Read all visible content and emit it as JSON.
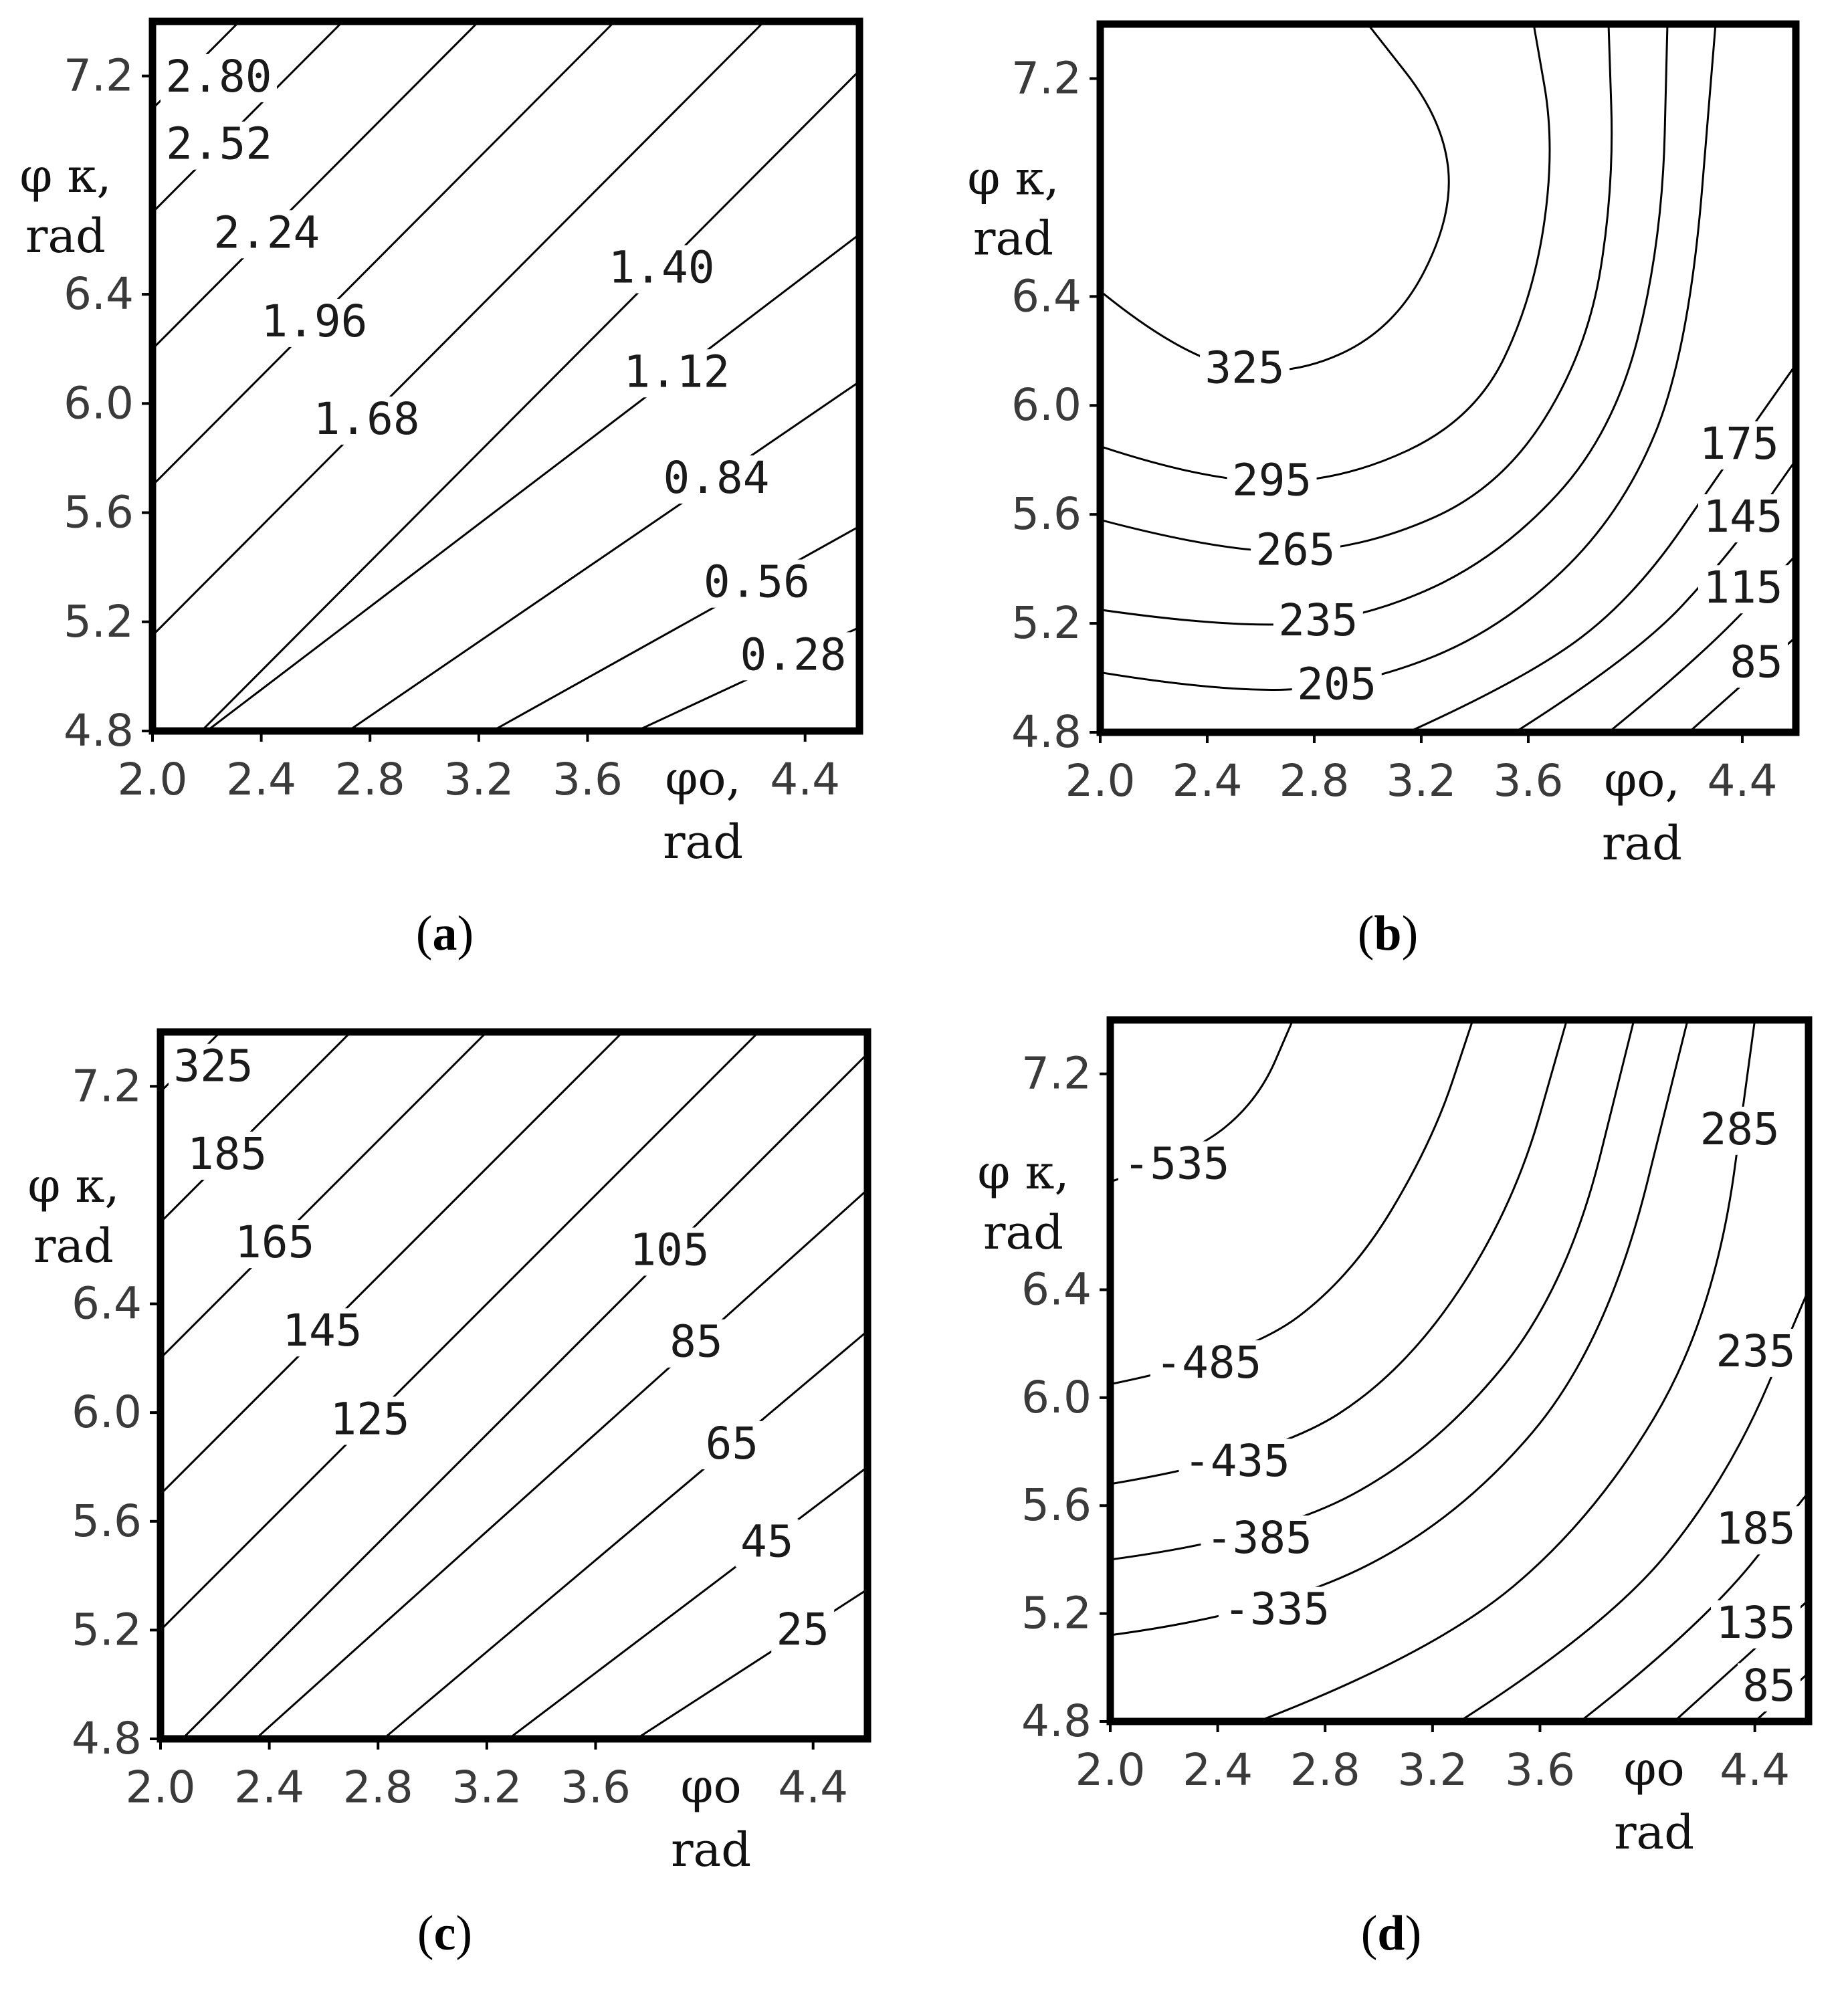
{
  "colors": {
    "line": "#000000",
    "text": "#1a1a1a",
    "background": "#ffffff"
  },
  "chart_data": [
    {
      "id": "a",
      "type": "contour",
      "caption_letter": "a",
      "xlabel": "φo,",
      "xlabel_unit": "rad",
      "ylabel": "φ κ,",
      "ylabel_unit": "rad",
      "xlim": [
        2.0,
        4.6
      ],
      "ylim": [
        4.8,
        7.4
      ],
      "x_ticks": [
        "2.0",
        "2.4",
        "2.8",
        "3.2",
        "3.6",
        "4.4"
      ],
      "y_ticks": [
        "7.2",
        "6.4",
        "6.0",
        "5.6",
        "5.2",
        "4.8"
      ],
      "grid": false,
      "contours": [
        {
          "level": "2.80",
          "points": [
            [
              2.0,
              7.08
            ],
            [
              2.32,
              7.4
            ]
          ]
        },
        {
          "level": "2.52",
          "points": [
            [
              2.0,
              6.7
            ],
            [
              2.7,
              7.4
            ]
          ]
        },
        {
          "level": "2.24",
          "points": [
            [
              2.0,
              6.2
            ],
            [
              3.2,
              7.4
            ]
          ]
        },
        {
          "level": "1.96",
          "points": [
            [
              2.0,
              5.7
            ],
            [
              3.7,
              7.4
            ]
          ]
        },
        {
          "level": "1.68",
          "points": [
            [
              2.0,
              5.15
            ],
            [
              4.25,
              7.4
            ]
          ]
        },
        {
          "level": "1.40",
          "points": [
            [
              2.0,
              4.62
            ],
            [
              4.6,
              7.22
            ]
          ]
        },
        {
          "level": "1.12",
          "points": [
            [
              2.2,
              4.8
            ],
            [
              4.6,
              6.62
            ]
          ]
        },
        {
          "level": "0.84",
          "points": [
            [
              2.72,
              4.8
            ],
            [
              4.6,
              6.08
            ]
          ]
        },
        {
          "level": "0.56",
          "points": [
            [
              3.25,
              4.8
            ],
            [
              4.6,
              5.55
            ]
          ]
        },
        {
          "level": "0.28",
          "points": [
            [
              3.78,
              4.8
            ],
            [
              4.6,
              5.18
            ]
          ]
        }
      ]
    },
    {
      "id": "b",
      "type": "contour",
      "caption_letter": "b",
      "xlabel": "φo,",
      "xlabel_unit": "rad",
      "ylabel": "φ κ,",
      "ylabel_unit": "rad",
      "xlim": [
        2.0,
        4.6
      ],
      "ylim": [
        4.8,
        7.4
      ],
      "x_ticks": [
        "2.0",
        "2.4",
        "2.8",
        "3.2",
        "3.6",
        "4.4"
      ],
      "y_ticks": [
        "7.2",
        "6.4",
        "6.0",
        "5.6",
        "5.2",
        "4.8"
      ],
      "grid": false,
      "contours": [
        {
          "level": "325",
          "points": [
            [
              2.0,
              6.42
            ],
            [
              2.3,
              6.18
            ],
            [
              2.7,
              6.1
            ],
            [
              3.1,
              6.28
            ],
            [
              3.32,
              6.7
            ],
            [
              3.28,
              7.05
            ],
            [
              3.0,
              7.4
            ]
          ]
        },
        {
          "level": "295",
          "points": [
            [
              2.0,
              5.85
            ],
            [
              2.4,
              5.72
            ],
            [
              2.9,
              5.72
            ],
            [
              3.4,
              5.95
            ],
            [
              3.62,
              6.4
            ],
            [
              3.7,
              6.95
            ],
            [
              3.62,
              7.4
            ]
          ]
        },
        {
          "level": "265",
          "points": [
            [
              2.0,
              5.58
            ],
            [
              2.5,
              5.45
            ],
            [
              3.0,
              5.48
            ],
            [
              3.5,
              5.7
            ],
            [
              3.82,
              6.2
            ],
            [
              3.92,
              6.8
            ],
            [
              3.9,
              7.4
            ]
          ]
        },
        {
          "level": "235",
          "points": [
            [
              2.0,
              5.25
            ],
            [
              2.5,
              5.18
            ],
            [
              3.0,
              5.22
            ],
            [
              3.5,
              5.45
            ],
            [
              3.92,
              5.9
            ],
            [
              4.1,
              6.6
            ],
            [
              4.12,
              7.4
            ]
          ]
        },
        {
          "level": "205",
          "points": [
            [
              2.0,
              5.02
            ],
            [
              2.5,
              4.94
            ],
            [
              3.0,
              4.98
            ],
            [
              3.5,
              5.18
            ],
            [
              3.95,
              5.6
            ],
            [
              4.2,
              6.2
            ],
            [
              4.3,
              7.4
            ]
          ]
        },
        {
          "level": "175",
          "points": [
            [
              3.15,
              4.8
            ],
            [
              3.6,
              5.0
            ],
            [
              4.0,
              5.3
            ],
            [
              4.35,
              5.8
            ],
            [
              4.6,
              6.15
            ]
          ]
        },
        {
          "level": "145",
          "points": [
            [
              3.55,
              4.8
            ],
            [
              4.0,
              5.08
            ],
            [
              4.35,
              5.45
            ],
            [
              4.6,
              5.8
            ]
          ]
        },
        {
          "level": "115",
          "points": [
            [
              3.9,
              4.8
            ],
            [
              4.25,
              5.08
            ],
            [
              4.6,
              5.45
            ]
          ]
        },
        {
          "level": "85",
          "points": [
            [
              4.2,
              4.8
            ],
            [
              4.6,
              5.15
            ]
          ]
        }
      ]
    },
    {
      "id": "c",
      "type": "contour",
      "caption_letter": "c",
      "xlabel": "φo",
      "xlabel_unit": "rad",
      "ylabel": "φ κ,",
      "ylabel_unit": "rad",
      "xlim": [
        2.0,
        4.6
      ],
      "ylim": [
        4.8,
        7.4
      ],
      "x_ticks": [
        "2.0",
        "2.4",
        "2.8",
        "3.2",
        "3.6",
        "4.4"
      ],
      "y_ticks": [
        "7.2",
        "6.4",
        "6.0",
        "5.6",
        "5.2",
        "4.8"
      ],
      "grid": false,
      "contours": [
        {
          "level": "325",
          "points": [
            [
              2.0,
              7.18
            ],
            [
              2.22,
              7.4
            ]
          ]
        },
        {
          "level": "185",
          "points": [
            [
              2.0,
              6.7
            ],
            [
              2.7,
              7.4
            ]
          ]
        },
        {
          "level": "165",
          "points": [
            [
              2.0,
              6.2
            ],
            [
              3.2,
              7.4
            ]
          ]
        },
        {
          "level": "145",
          "points": [
            [
              2.0,
              5.7
            ],
            [
              3.7,
              7.4
            ]
          ]
        },
        {
          "level": "125",
          "points": [
            [
              2.0,
              5.2
            ],
            [
              4.2,
              7.4
            ]
          ]
        },
        {
          "level": "105",
          "points": [
            [
              2.0,
              4.72
            ],
            [
              4.6,
              7.32
            ]
          ]
        },
        {
          "level": "85",
          "points": [
            [
              2.35,
              4.8
            ],
            [
              4.6,
              6.82
            ]
          ]
        },
        {
          "level": "65",
          "points": [
            [
              2.82,
              4.8
            ],
            [
              4.6,
              6.3
            ]
          ]
        },
        {
          "level": "45",
          "points": [
            [
              3.28,
              4.8
            ],
            [
              4.6,
              5.8
            ]
          ]
        },
        {
          "level": "25",
          "points": [
            [
              3.75,
              4.8
            ],
            [
              4.6,
              5.35
            ]
          ]
        }
      ]
    },
    {
      "id": "d",
      "type": "contour",
      "caption_letter": "d",
      "xlabel": "φo",
      "xlabel_unit": "rad",
      "ylabel": "φ κ,",
      "ylabel_unit": "rad",
      "xlim": [
        2.0,
        4.6
      ],
      "ylim": [
        4.8,
        7.4
      ],
      "x_ticks": [
        "2.0",
        "2.4",
        "2.8",
        "3.2",
        "3.6",
        "4.4"
      ],
      "y_ticks": [
        "7.2",
        "6.4",
        "6.0",
        "5.6",
        "5.2",
        "4.8"
      ],
      "grid": false,
      "contours": [
        {
          "level": "-535",
          "points": [
            [
              2.0,
              6.8
            ],
            [
              2.3,
              6.9
            ],
            [
              2.55,
              7.1
            ],
            [
              2.68,
              7.4
            ]
          ]
        },
        {
          "level": "-485",
          "points": [
            [
              2.0,
              6.05
            ],
            [
              2.5,
              6.15
            ],
            [
              2.9,
              6.45
            ],
            [
              3.2,
              6.95
            ],
            [
              3.35,
              7.4
            ]
          ]
        },
        {
          "level": "-435",
          "points": [
            [
              2.0,
              5.68
            ],
            [
              2.6,
              5.78
            ],
            [
              3.1,
              6.1
            ],
            [
              3.5,
              6.7
            ],
            [
              3.7,
              7.4
            ]
          ]
        },
        {
          "level": "-385",
          "points": [
            [
              2.0,
              5.4
            ],
            [
              2.6,
              5.48
            ],
            [
              3.2,
              5.8
            ],
            [
              3.7,
              6.4
            ],
            [
              3.95,
              7.4
            ]
          ]
        },
        {
          "level": "-335",
          "points": [
            [
              2.0,
              5.12
            ],
            [
              2.6,
              5.2
            ],
            [
              3.3,
              5.55
            ],
            [
              3.85,
              6.2
            ],
            [
              4.15,
              7.4
            ]
          ]
        },
        {
          "level": "285",
          "points": [
            [
              2.55,
              4.8
            ],
            [
              3.2,
              5.05
            ],
            [
              3.8,
              5.55
            ],
            [
              4.25,
              6.3
            ],
            [
              4.4,
              7.4
            ]
          ]
        },
        {
          "level": "235",
          "points": [
            [
              3.3,
              4.8
            ],
            [
              3.85,
              5.15
            ],
            [
              4.3,
              5.7
            ],
            [
              4.6,
              6.4
            ]
          ]
        },
        {
          "level": "185",
          "points": [
            [
              3.75,
              4.8
            ],
            [
              4.2,
              5.15
            ],
            [
              4.6,
              5.65
            ]
          ]
        },
        {
          "level": "135",
          "points": [
            [
              4.1,
              4.8
            ],
            [
              4.6,
              5.25
            ]
          ]
        },
        {
          "level": "85",
          "points": [
            [
              4.4,
              4.8
            ],
            [
              4.6,
              4.98
            ]
          ]
        }
      ]
    }
  ]
}
